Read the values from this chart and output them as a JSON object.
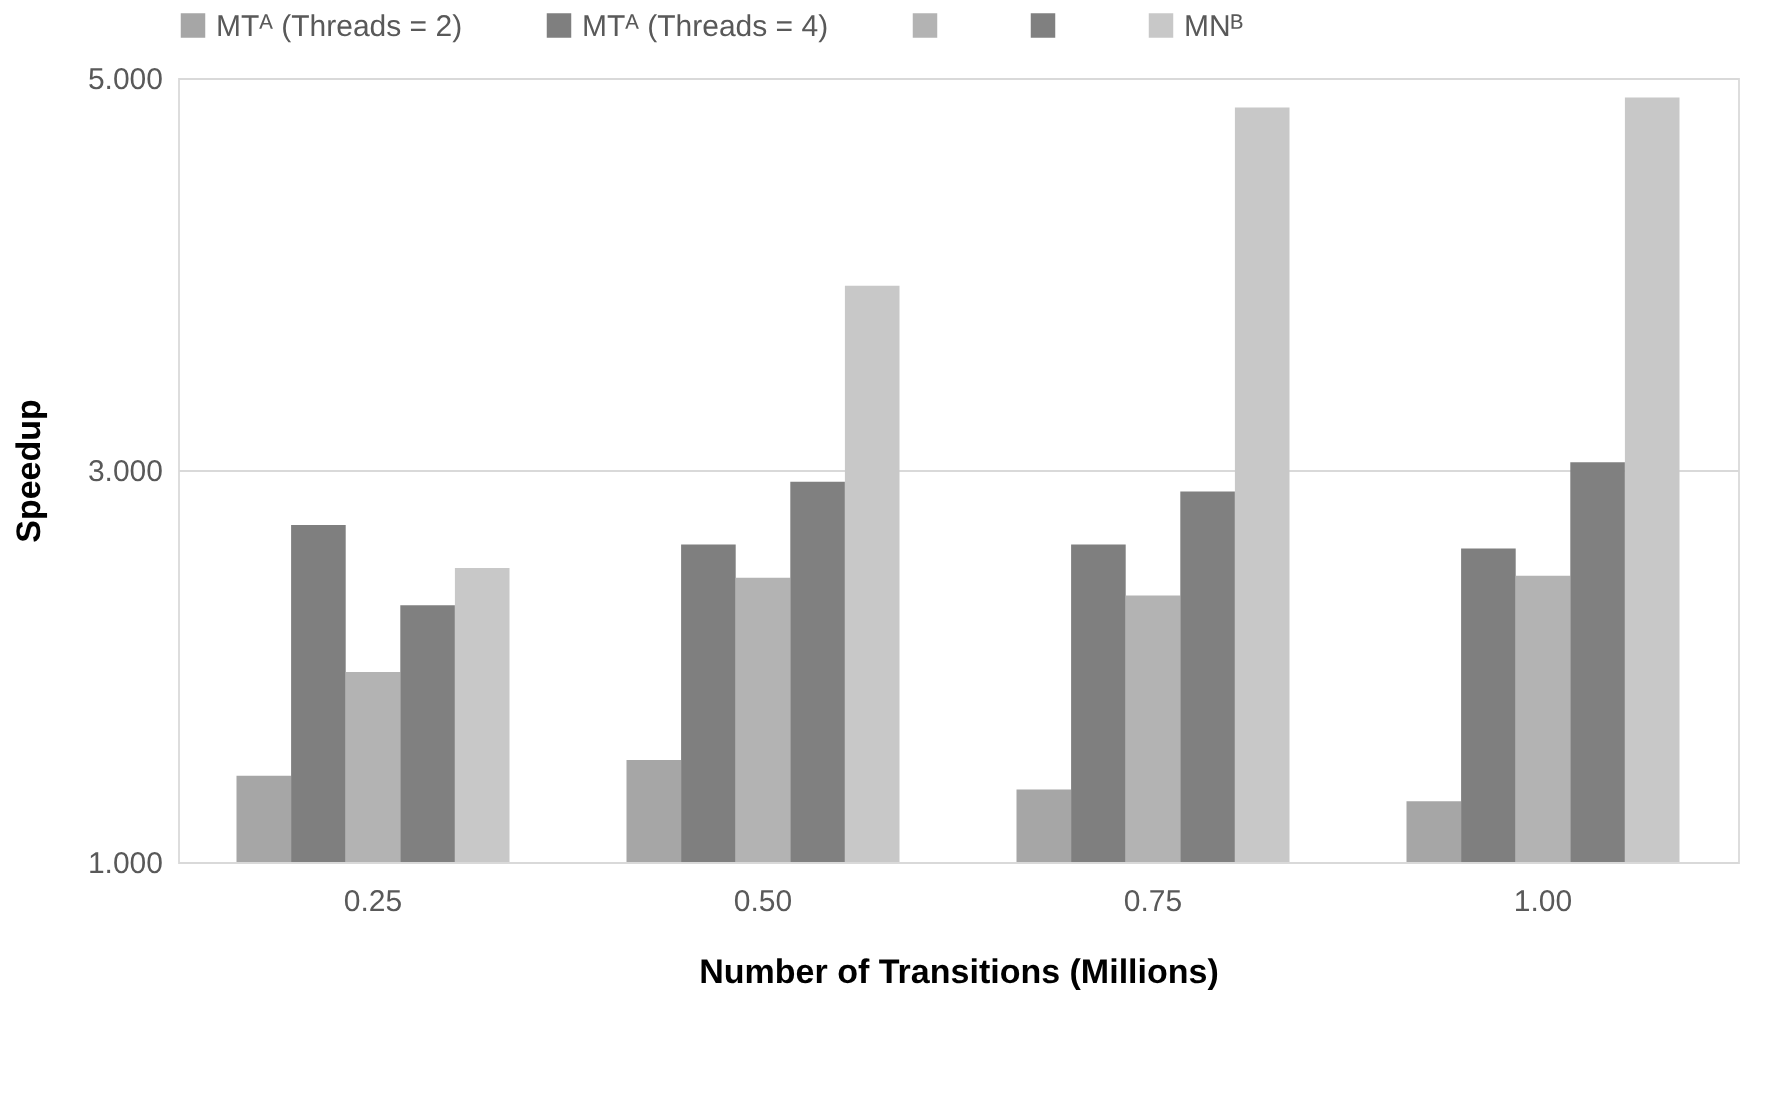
{
  "chart_data": {
    "type": "bar",
    "xlabel": "Number of Transitions (Millions)",
    "ylabel": "Speedup",
    "categories": [
      "0.25",
      "0.50",
      "0.75",
      "1.00"
    ],
    "series": [
      {
        "name": "MTᴬ (Threads = 2)",
        "color": "#a6a6a6",
        "values": [
          1.44,
          1.52,
          1.37,
          1.31
        ]
      },
      {
        "name": "MTᴬ (Threads = 4)",
        "color": "#7f7f7f",
        "values": [
          2.72,
          2.62,
          2.62,
          2.6
        ]
      },
      {
        "color": "#b3b3b3",
        "values": [
          1.97,
          2.45,
          2.36,
          2.46
        ]
      },
      {
        "color": "#808080",
        "values": [
          2.31,
          2.94,
          2.89,
          3.04
        ]
      },
      {
        "name": "MNᴮ",
        "color": "#c8c8c8",
        "values": [
          2.5,
          3.94,
          4.85,
          4.9
        ]
      }
    ],
    "ylim": [
      1,
      5
    ],
    "yticks": [
      {
        "value": 1,
        "label": "1.000"
      },
      {
        "value": 3,
        "label": "3.000"
      },
      {
        "value": 5,
        "label": "5.000"
      }
    ],
    "grid": "y",
    "legend": "top"
  }
}
